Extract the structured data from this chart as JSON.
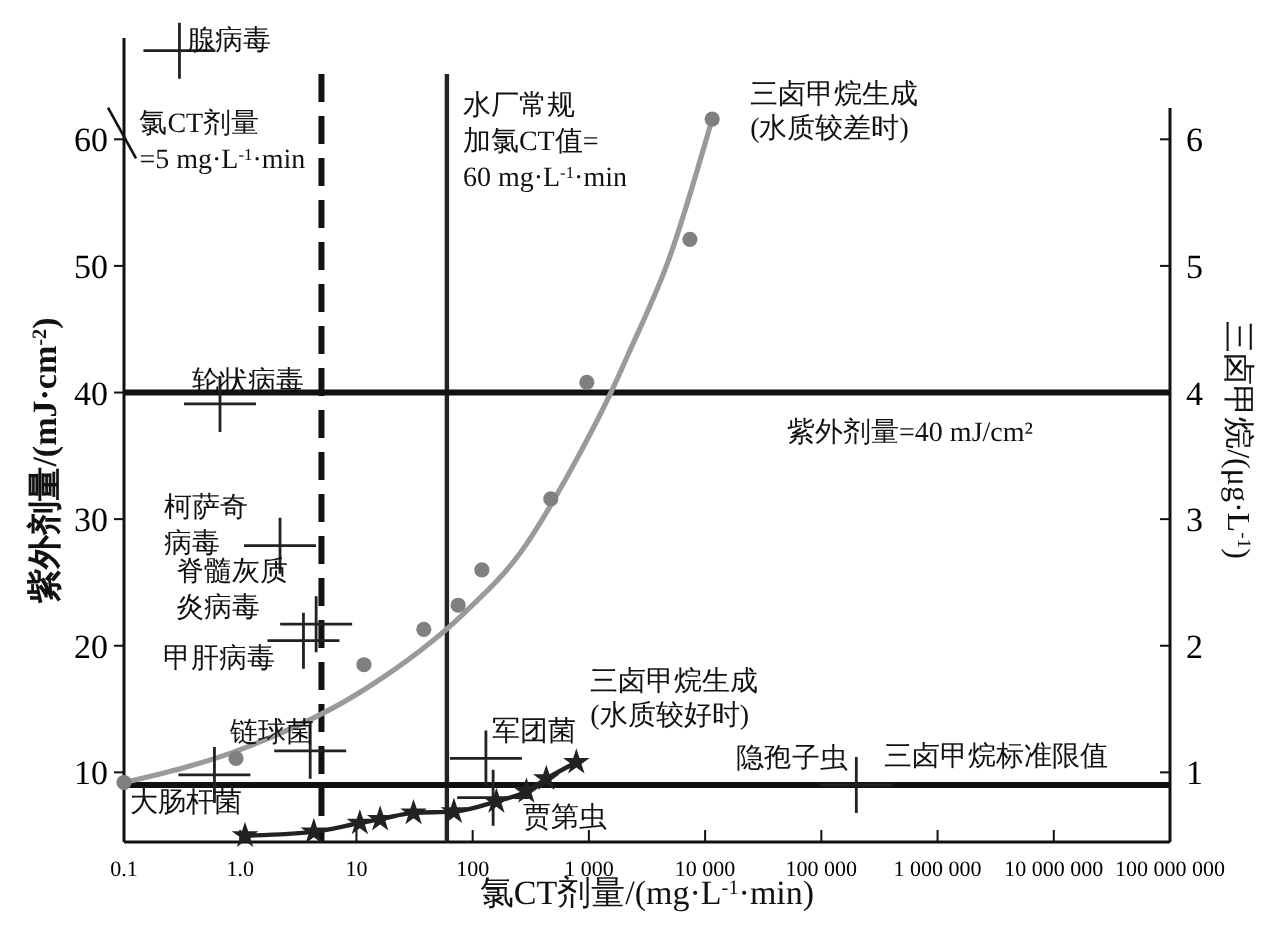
{
  "chart_data": {
    "type": "scatter",
    "xlabel": "氯CT剂量/(mg·L$^{-1}$·min)",
    "ylabel": "紫外剂量/(mJ·cm$^{-2}$)",
    "y2label": "三卤甲烷/(μg·L$^{-1}$)",
    "log": "x",
    "grid": false,
    "xlim": [
      0.1,
      100000000
    ],
    "xticks": [
      0.1,
      {
        "value": 1,
        "label": "1.0"
      },
      10,
      100,
      {
        "value": 1000,
        "label": "1 000"
      },
      {
        "value": 10000,
        "label": "10 000"
      },
      {
        "value": 100000,
        "label": "100 000"
      },
      {
        "value": 1000000,
        "label": "1 000 000"
      },
      {
        "value": 10000000,
        "label": "10 000 000"
      },
      {
        "value": 100000000,
        "label": "100 000 000"
      }
    ],
    "ylim": [
      4.5,
      68
    ],
    "yticks": [
      10,
      20,
      30,
      40,
      50,
      60
    ],
    "y2lim": [
      0.45,
      6.8
    ],
    "y2ticks": [
      1,
      2,
      3,
      4,
      5,
      6
    ],
    "series": [
      {
        "type": "line",
        "name": "三卤甲烷生成\n(水质较差时)",
        "color": "#9a9a9a",
        "axis": "y2",
        "marker": "none",
        "x": [
          0.1,
          1,
          12,
          85,
          260,
          700,
          1700,
          2200,
          5000,
          11500
        ],
        "values": [
          0.92,
          1.18,
          1.66,
          2.26,
          2.74,
          3.39,
          4.08,
          4.31,
          5.08,
          6.16
        ]
      },
      {
        "color": "#808080",
        "axis": "y2",
        "marker": "circle",
        "x": [
          0.1,
          0.92,
          11.6,
          38,
          75,
          120,
          470,
          960,
          7400,
          11500
        ],
        "values": [
          0.92,
          1.11,
          1.85,
          2.13,
          2.32,
          2.6,
          3.16,
          4.08,
          5.21,
          6.16
        ]
      },
      {
        "type": "line",
        "name": "三卤甲烷生成\n(水质较好时)",
        "color": "#222222",
        "axis": "y2",
        "marker": "star",
        "x": [
          1.1,
          4.3,
          10.7,
          16,
          31,
          69,
          160,
          290,
          430,
          780
        ],
        "values": [
          0.5,
          0.53,
          0.6,
          0.63,
          0.68,
          0.69,
          0.77,
          0.85,
          0.95,
          1.08
        ]
      },
      {
        "color": "#222222",
        "marker": "cross",
        "x": [
          0.3,
          0.67,
          2.2,
          4.5,
          3.5,
          4,
          0.6,
          130,
          150,
          200000
        ],
        "values": [
          67,
          39.1,
          27.9,
          21.7,
          20.4,
          11.7,
          9.8,
          11.1,
          8,
          9
        ]
      }
    ],
    "ref_lines": [
      {
        "axis": "x",
        "value": 5,
        "label": "氯CT剂量\n=5 mg·L$^{-1}$·min",
        "color": "#111111",
        "line_style": "dashed"
      },
      {
        "axis": "x",
        "value": 60,
        "label": "水厂常规加氯CT值=\n60 mg·L$^{-1}$·min",
        "color": "#222222",
        "line_style": "solid"
      },
      {
        "axis": "y",
        "value": 40,
        "label": "紫外剂量=40 mJ/cm²",
        "color": "#111111",
        "line_style": "solid"
      },
      {
        "axis": "y2",
        "value": 0.9,
        "label": "三卤甲烷标准限值",
        "color": "#111111",
        "line_style": "solid"
      }
    ],
    "annotations": [
      {
        "text": "腺病毒",
        "x": 0.3,
        "y": 67
      },
      {
        "text": "轮状病毒",
        "x": 0.67,
        "y": 39.1
      },
      {
        "text": "柯萨奇病毒",
        "x": 2.2,
        "y": 27.9
      },
      {
        "text": "脊髓灰质炎病毒",
        "x": 4.5,
        "y": 21.7
      },
      {
        "text": "甲肝病毒",
        "x": 3.5,
        "y": 20.4
      },
      {
        "text": "链球菌",
        "x": 4,
        "y": 11.7
      },
      {
        "text": "大肠杆菌",
        "x": 0.6,
        "y": 9.8
      },
      {
        "text": "军团菌",
        "x": 130,
        "y": 11.1
      },
      {
        "text": "贾第虫",
        "x": 150,
        "y": 8
      },
      {
        "text": "隐孢子虫",
        "x": 200000,
        "y": 9
      }
    ]
  }
}
